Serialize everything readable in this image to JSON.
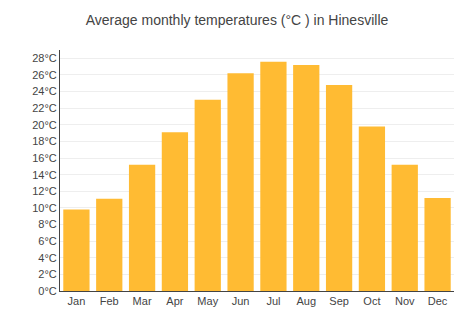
{
  "chart_data": {
    "type": "bar",
    "title": "Average monthly temperatures (°C ) in Hinesville",
    "categories": [
      "Jan",
      "Feb",
      "Mar",
      "Apr",
      "May",
      "Jun",
      "Jul",
      "Aug",
      "Sep",
      "Oct",
      "Nov",
      "Dec"
    ],
    "values": [
      9.8,
      11.1,
      15.2,
      19.1,
      23.0,
      26.2,
      27.6,
      27.2,
      24.8,
      19.8,
      15.2,
      11.2
    ],
    "color": "#FFBB33",
    "ylim": [
      0,
      29
    ],
    "yticks": [
      {
        "value": 0,
        "label": "0°C"
      },
      {
        "value": 2,
        "label": "2°C"
      },
      {
        "value": 4,
        "label": "4°C"
      },
      {
        "value": 6,
        "label": "6°C"
      },
      {
        "value": 8,
        "label": "8°C"
      },
      {
        "value": 10,
        "label": "10°C"
      },
      {
        "value": 12,
        "label": "12°C"
      },
      {
        "value": 14,
        "label": "14°C"
      },
      {
        "value": 16,
        "label": "16°C"
      },
      {
        "value": 18,
        "label": "18°C"
      },
      {
        "value": 20,
        "label": "20°C"
      },
      {
        "value": 22,
        "label": "22°C"
      },
      {
        "value": 24,
        "label": "24°C"
      },
      {
        "value": 26,
        "label": "26°C"
      },
      {
        "value": 28,
        "label": "28°C"
      }
    ],
    "grid": true
  }
}
